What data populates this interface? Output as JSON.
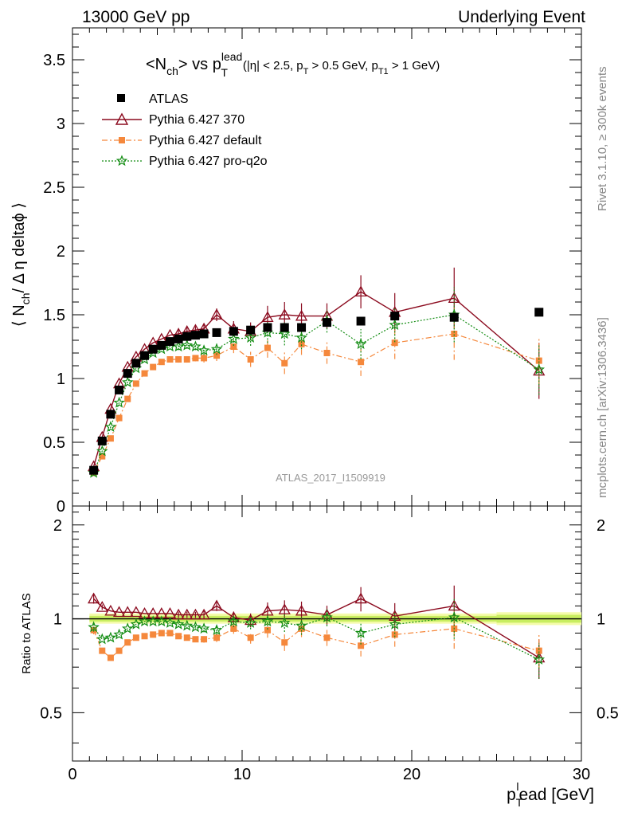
{
  "header": {
    "left": "13000 GeV pp",
    "right": "Underlying Event"
  },
  "side_labels": {
    "rivet": "Rivet 3.1.10, ≥ 300k events",
    "mcplots": "mcplots.cern.ch [arXiv:1306.3436]"
  },
  "watermark": "ATLAS_2017_I1509919",
  "colors": {
    "atlas": "#000000",
    "p370": "#8b0a1e",
    "default": "#f5883c",
    "proq2o": "#128c12",
    "band_inner": "#c8ee60",
    "band_outer": "#f4fbaa"
  },
  "chart_data": [
    {
      "type": "scatter",
      "title": {
        "main": "<N",
        "main_sub": "ch",
        "main_tail": "> vs p",
        "pt_sup": "lead",
        "pt_sub": "T",
        "cuts_a": "(|η| < 2.5, p",
        "cuts_sub1": "T",
        "cuts_b": " > 0.5 GeV, p",
        "cuts_sub2": "T1",
        "cuts_c": " > 1 GeV)"
      },
      "ylabel": {
        "a": "⟨ N",
        "sub": "ch",
        "b": "/ Δ η deltaϕ ⟩"
      },
      "xlim": [
        0,
        30
      ],
      "ylim": [
        0,
        3.75
      ],
      "y_ticks": [
        0,
        0.5,
        1,
        1.5,
        2,
        2.5,
        3,
        3.5
      ],
      "y_tick_labels": [
        "0",
        "0.5",
        "1",
        "1.5",
        "2",
        "2.5",
        "3",
        "3.5"
      ],
      "legend": [
        "ATLAS",
        "Pythia 6.427 370",
        "Pythia 6.427 default",
        "Pythia 6.427 pro-q2o"
      ],
      "legend_position": "top-left",
      "x": [
        1.25,
        1.75,
        2.25,
        2.75,
        3.25,
        3.75,
        4.25,
        4.75,
        5.25,
        5.75,
        6.25,
        6.75,
        7.25,
        7.75,
        8.5,
        9.5,
        10.5,
        11.5,
        12.5,
        13.5,
        15.0,
        17.0,
        19.0,
        22.5,
        27.5
      ],
      "series": [
        {
          "name": "ATLAS",
          "values": [
            0.28,
            0.51,
            0.72,
            0.91,
            1.04,
            1.12,
            1.18,
            1.23,
            1.26,
            1.29,
            1.31,
            1.33,
            1.34,
            1.35,
            1.36,
            1.37,
            1.38,
            1.4,
            1.4,
            1.4,
            1.44,
            1.45,
            1.49,
            1.48,
            1.52
          ],
          "errors": [
            0.01,
            0.01,
            0.01,
            0.01,
            0.01,
            0.01,
            0.01,
            0.01,
            0.01,
            0.01,
            0.01,
            0.01,
            0.01,
            0.01,
            0.01,
            0.01,
            0.01,
            0.01,
            0.01,
            0.01,
            0.01,
            0.01,
            0.01,
            0.01,
            0.01
          ]
        },
        {
          "name": "Pythia 6.427 370",
          "values": [
            0.31,
            0.54,
            0.76,
            0.96,
            1.09,
            1.17,
            1.23,
            1.28,
            1.31,
            1.34,
            1.35,
            1.37,
            1.38,
            1.39,
            1.5,
            1.39,
            1.37,
            1.48,
            1.5,
            1.49,
            1.49,
            1.68,
            1.52,
            1.63,
            1.06
          ],
          "errors": [
            0.01,
            0.01,
            0.01,
            0.01,
            0.01,
            0.01,
            0.02,
            0.02,
            0.02,
            0.02,
            0.03,
            0.03,
            0.03,
            0.04,
            0.05,
            0.06,
            0.07,
            0.09,
            0.1,
            0.1,
            0.1,
            0.13,
            0.15,
            0.24,
            0.22
          ]
        },
        {
          "name": "Pythia 6.427 default",
          "values": [
            0.26,
            0.39,
            0.53,
            0.69,
            0.84,
            0.96,
            1.04,
            1.09,
            1.13,
            1.15,
            1.15,
            1.15,
            1.16,
            1.16,
            1.18,
            1.25,
            1.15,
            1.24,
            1.12,
            1.27,
            1.2,
            1.13,
            1.28,
            1.35,
            1.14
          ]
        },
        {
          "name": "Pythia 6.427 pro-q2o",
          "values": [
            0.26,
            0.43,
            0.62,
            0.81,
            0.97,
            1.08,
            1.15,
            1.2,
            1.23,
            1.25,
            1.25,
            1.26,
            1.25,
            1.22,
            1.23,
            1.31,
            1.32,
            1.36,
            1.35,
            1.32,
            1.45,
            1.27,
            1.42,
            1.5,
            1.07
          ]
        }
      ]
    },
    {
      "type": "scatter",
      "ylabel": "Ratio to ATLAS",
      "xlabel": {
        "a": "p",
        "sub": "T",
        "sup": "l",
        "b": "ead [GeV]"
      },
      "xlim": [
        0,
        30
      ],
      "ylim": [
        0.35,
        2.3
      ],
      "y_ticks": [
        0.5,
        1,
        2
      ],
      "y_tick_labels": [
        "0.5",
        "1",
        "2"
      ],
      "x_ticks": [
        0,
        10,
        20,
        30
      ],
      "x_tick_labels": [
        "0",
        "10",
        "20",
        "30"
      ],
      "x": [
        1.25,
        1.75,
        2.25,
        2.75,
        3.25,
        3.75,
        4.25,
        4.75,
        5.25,
        5.75,
        6.25,
        6.75,
        7.25,
        7.75,
        8.5,
        9.5,
        10.5,
        11.5,
        12.5,
        13.5,
        15.0,
        17.0,
        19.0,
        22.5,
        27.5
      ],
      "series": [
        {
          "name": "Pythia 6.427 370",
          "values": [
            1.16,
            1.09,
            1.06,
            1.05,
            1.05,
            1.05,
            1.04,
            1.04,
            1.04,
            1.04,
            1.03,
            1.03,
            1.03,
            1.03,
            1.1,
            1.01,
            0.99,
            1.06,
            1.07,
            1.06,
            1.03,
            1.16,
            1.02,
            1.1,
            0.75
          ]
        },
        {
          "name": "Pythia 6.427 default",
          "values": [
            0.92,
            0.79,
            0.75,
            0.79,
            0.84,
            0.87,
            0.88,
            0.89,
            0.9,
            0.9,
            0.88,
            0.87,
            0.86,
            0.86,
            0.87,
            0.93,
            0.87,
            0.92,
            0.84,
            0.93,
            0.87,
            0.82,
            0.89,
            0.93,
            0.79
          ]
        },
        {
          "name": "Pythia 6.427 pro-q2o",
          "values": [
            0.94,
            0.86,
            0.87,
            0.89,
            0.93,
            0.96,
            0.98,
            0.98,
            0.98,
            0.97,
            0.96,
            0.95,
            0.94,
            0.93,
            0.92,
            0.98,
            0.97,
            0.98,
            0.97,
            0.95,
            1.01,
            0.9,
            0.96,
            1.01,
            0.74
          ]
        }
      ]
    }
  ]
}
